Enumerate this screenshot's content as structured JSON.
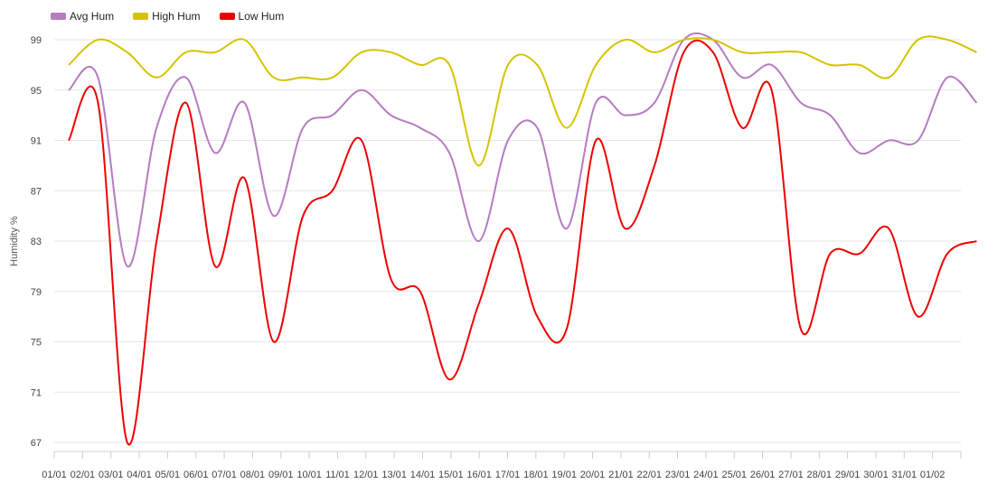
{
  "chart_data": {
    "type": "line",
    "ylabel": "Humidity %",
    "ylim": [
      67,
      99
    ],
    "yticks": [
      "99",
      "95",
      "91",
      "87",
      "83",
      "79",
      "75",
      "71",
      "67"
    ],
    "xtick_labels": [
      "01/01",
      "02/01",
      "03/01",
      "04/01",
      "05/01",
      "06/01",
      "07/01",
      "08/01",
      "09/01",
      "10/01",
      "11/01",
      "12/01",
      "13/01",
      "14/01",
      "15/01",
      "16/01",
      "17/01",
      "18/01",
      "19/01",
      "20/01",
      "21/01",
      "22/01",
      "23/01",
      "24/01",
      "25/01",
      "26/01",
      "27/01",
      "28/01",
      "29/01",
      "30/01",
      "31/01",
      "01/02"
    ],
    "grid": true,
    "legend_position": "top-left",
    "series": [
      {
        "name": "Avg Hum",
        "color": "#b57cc0",
        "values": [
          95,
          96,
          81,
          92,
          96,
          90,
          94,
          85,
          92,
          93,
          95,
          93,
          92,
          90,
          83,
          91,
          92,
          84,
          94,
          93,
          94,
          99,
          99,
          96,
          97,
          94,
          93,
          90,
          91,
          91,
          96,
          94
        ]
      },
      {
        "name": "High Hum",
        "color": "#d4c400",
        "values": [
          97,
          99,
          98,
          96,
          98,
          98,
          99,
          96,
          96,
          96,
          98,
          98,
          97,
          97,
          89,
          97,
          97,
          92,
          97,
          99,
          98,
          99,
          99,
          98,
          98,
          98,
          97,
          97,
          96,
          99,
          99,
          98
        ]
      },
      {
        "name": "Low Hum",
        "color": "#ee0000",
        "values": [
          91,
          94,
          67,
          83,
          94,
          81,
          88,
          75,
          85,
          87,
          91,
          80,
          79,
          72,
          78,
          84,
          77,
          76,
          91,
          84,
          89,
          98,
          98,
          92,
          95,
          76,
          82,
          82,
          84,
          77,
          82,
          83
        ]
      }
    ]
  }
}
